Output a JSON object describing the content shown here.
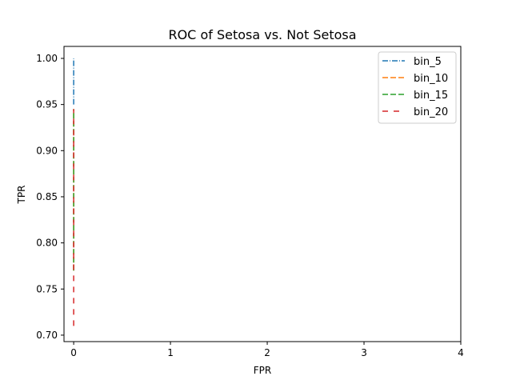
{
  "chart_data": {
    "type": "line",
    "title": "ROC of Setosa vs. Not Setosa",
    "xlabel": "FPR",
    "ylabel": "TPR",
    "xlim": [
      -0.1,
      4
    ],
    "ylim": [
      0.693,
      1.013
    ],
    "xticks": [
      0,
      1,
      2,
      3,
      4
    ],
    "xtick_labels": [
      "0",
      "1",
      "2",
      "3",
      "4"
    ],
    "yticks": [
      0.7,
      0.75,
      0.8,
      0.85,
      0.9,
      0.95,
      1.0
    ],
    "ytick_labels": [
      "0.70",
      "0.75",
      "0.80",
      "0.85",
      "0.90",
      "0.95",
      "1.00"
    ],
    "grid": false,
    "legend_position": "top-right",
    "series": [
      {
        "name": "bin_5",
        "color": "#1f77b4",
        "dash": "dashdot",
        "x": [
          0,
          0
        ],
        "y": [
          0.95,
          1.0
        ]
      },
      {
        "name": "bin_10",
        "color": "#ff7f0e",
        "dash": "dashed",
        "x": [
          0,
          0
        ],
        "y": [
          0.77,
          0.945
        ]
      },
      {
        "name": "bin_15",
        "color": "#2ca02c",
        "dash": "dashed",
        "x": [
          0,
          0
        ],
        "y": [
          0.77,
          0.945
        ]
      },
      {
        "name": "bin_20",
        "color": "#d62728",
        "dash": "loosely-dashed",
        "x": [
          0,
          0
        ],
        "y": [
          0.71,
          0.945
        ]
      }
    ]
  }
}
